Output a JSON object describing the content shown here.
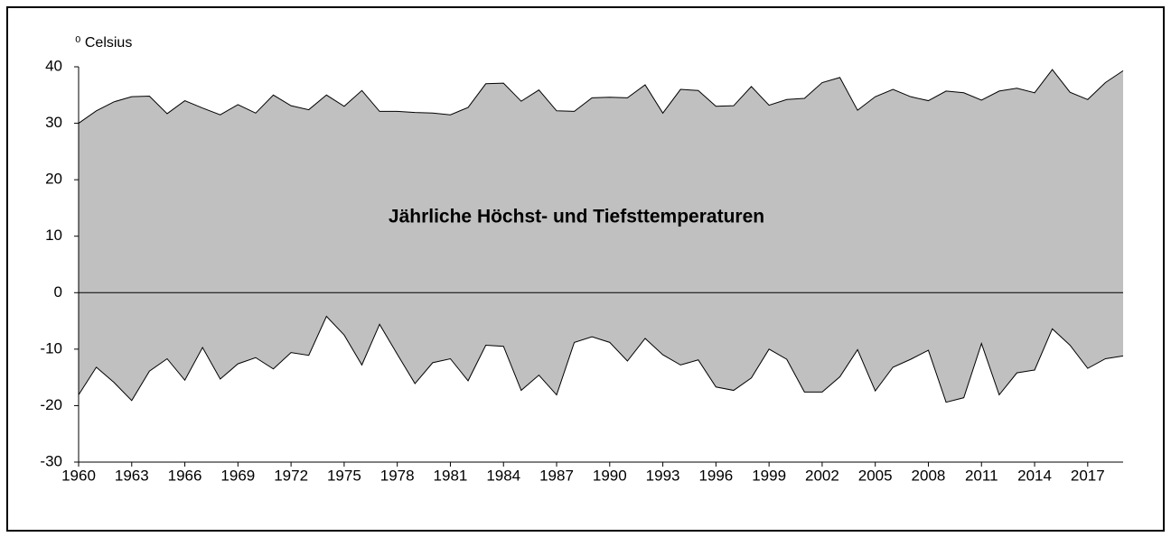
{
  "chart_data": {
    "type": "band",
    "title": "Jährliche Höchst- und Tiefsttemperaturen",
    "y_label": "⁰ Celsius",
    "x": [
      1960,
      1961,
      1962,
      1963,
      1964,
      1965,
      1966,
      1967,
      1968,
      1969,
      1970,
      1971,
      1972,
      1973,
      1974,
      1975,
      1976,
      1977,
      1978,
      1979,
      1980,
      1981,
      1982,
      1983,
      1984,
      1985,
      1986,
      1987,
      1988,
      1989,
      1990,
      1991,
      1992,
      1993,
      1994,
      1995,
      1996,
      1997,
      1998,
      1999,
      2000,
      2001,
      2002,
      2003,
      2004,
      2005,
      2006,
      2007,
      2008,
      2009,
      2010,
      2011,
      2012,
      2013,
      2014,
      2015,
      2016,
      2017,
      2018,
      2019
    ],
    "series": [
      {
        "color": "#000000",
        "values": [
          30.0,
          32.2,
          33.8,
          34.7,
          34.8,
          31.7,
          34.0,
          32.7,
          31.5,
          33.3,
          31.8,
          35.0,
          33.1,
          32.4,
          35.0,
          33.0,
          35.8,
          32.1,
          32.1,
          31.9,
          31.8,
          31.5,
          32.8,
          37.0,
          37.1,
          33.9,
          35.9,
          32.2,
          32.1,
          34.5,
          34.6,
          34.5,
          36.8,
          31.8,
          36.0,
          35.8,
          33.0,
          33.1,
          36.5,
          33.2,
          34.2,
          34.4,
          37.2,
          38.1,
          32.3,
          34.7,
          36.0,
          34.7,
          34.0,
          35.7,
          35.4,
          34.1,
          35.7,
          36.2,
          35.4,
          39.5,
          35.5,
          34.2,
          37.2,
          39.3
        ]
      },
      {
        "color": "#000000",
        "values": [
          -18.1,
          -13.2,
          -15.9,
          -19.1,
          -13.9,
          -11.7,
          -15.5,
          -9.7,
          -15.3,
          -12.6,
          -11.5,
          -13.5,
          -10.6,
          -11.1,
          -4.2,
          -7.5,
          -12.8,
          -5.6,
          -10.9,
          -16.1,
          -12.4,
          -11.7,
          -15.6,
          -9.3,
          -9.5,
          -17.3,
          -14.6,
          -18.1,
          -8.8,
          -7.8,
          -8.8,
          -12.1,
          -8.1,
          -11.0,
          -12.8,
          -11.9,
          -16.7,
          -17.3,
          -15.1,
          -10.0,
          -11.8,
          -17.6,
          -17.6,
          -14.9,
          -10.1,
          -17.4,
          -13.2,
          -11.8,
          -10.2,
          -19.4,
          -18.6,
          -9.0,
          -18.1,
          -14.2,
          -13.7,
          -6.4,
          -9.3,
          -13.4,
          -11.7,
          -11.2
        ]
      }
    ],
    "fill_color": "#c0c0c0",
    "xlim": [
      1960,
      2019
    ],
    "xticks": [
      1960,
      1963,
      1966,
      1969,
      1972,
      1975,
      1978,
      1981,
      1984,
      1987,
      1990,
      1993,
      1996,
      1999,
      2002,
      2005,
      2008,
      2011,
      2014,
      2017
    ],
    "ylim": [
      -30,
      40
    ],
    "yticks": [
      -30,
      -20,
      -10,
      0,
      10,
      20,
      30,
      40
    ]
  }
}
